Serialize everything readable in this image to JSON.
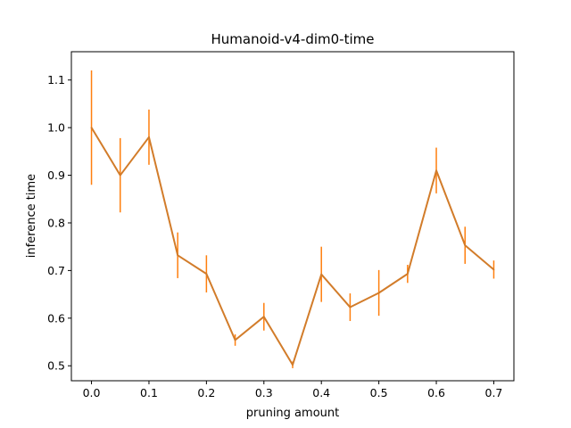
{
  "chart_data": {
    "type": "line",
    "title": "Humanoid-v4-dim0-time",
    "xlabel": "pruning amount",
    "ylabel": "inference time",
    "xlim": [
      -0.035,
      0.735
    ],
    "ylim": [
      0.4686,
      1.1594
    ],
    "xticks": [
      0.0,
      0.1,
      0.2,
      0.3,
      0.4,
      0.5,
      0.6,
      0.7
    ],
    "xtick_labels": [
      "0.0",
      "0.1",
      "0.2",
      "0.3",
      "0.4",
      "0.5",
      "0.6",
      "0.7"
    ],
    "yticks": [
      0.5,
      0.6,
      0.7,
      0.8,
      0.9,
      1.0,
      1.1
    ],
    "ytick_labels": [
      "0.5",
      "0.6",
      "0.7",
      "0.8",
      "0.9",
      "1.0",
      "1.1"
    ],
    "grid": false,
    "series": [
      {
        "color": "#ff7f0e",
        "line_color": "#d27c2a",
        "x": [
          0.0,
          0.05,
          0.1,
          0.15,
          0.2,
          0.25,
          0.3,
          0.35,
          0.4,
          0.45,
          0.5,
          0.55,
          0.6,
          0.65,
          0.7
        ],
        "y": [
          1.0,
          0.9,
          0.98,
          0.732,
          0.693,
          0.554,
          0.603,
          0.502,
          0.692,
          0.623,
          0.653,
          0.693,
          0.91,
          0.753,
          0.702
        ],
        "yerr": [
          0.12,
          0.078,
          0.058,
          0.048,
          0.039,
          0.012,
          0.029,
          0.007,
          0.058,
          0.029,
          0.048,
          0.019,
          0.048,
          0.039,
          0.019
        ]
      }
    ]
  }
}
